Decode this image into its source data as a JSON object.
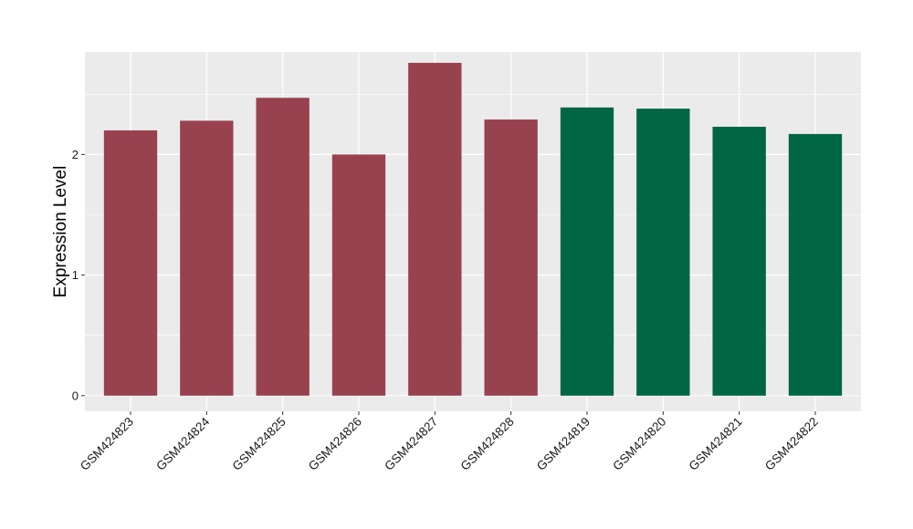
{
  "chart_data": {
    "type": "bar",
    "title": "",
    "xlabel": "",
    "ylabel": "Expression Level",
    "ylim": [
      -0.13,
      2.85
    ],
    "yticks": [
      0,
      1,
      2
    ],
    "grid": true,
    "legend": "none",
    "categories": [
      "GSM424823",
      "GSM424824",
      "GSM424825",
      "GSM424826",
      "GSM424827",
      "GSM424828",
      "GSM424819",
      "GSM424820",
      "GSM424821",
      "GSM424822"
    ],
    "values": [
      2.2,
      2.28,
      2.47,
      2.0,
      2.76,
      2.29,
      2.39,
      2.38,
      2.23,
      2.17
    ],
    "bar_colors": [
      "#98424f",
      "#98424f",
      "#98424f",
      "#98424f",
      "#98424f",
      "#98424f",
      "#006643",
      "#006643",
      "#006643",
      "#006643"
    ],
    "panel_background": "#ebebeb",
    "grid_color": "#ffffff"
  }
}
